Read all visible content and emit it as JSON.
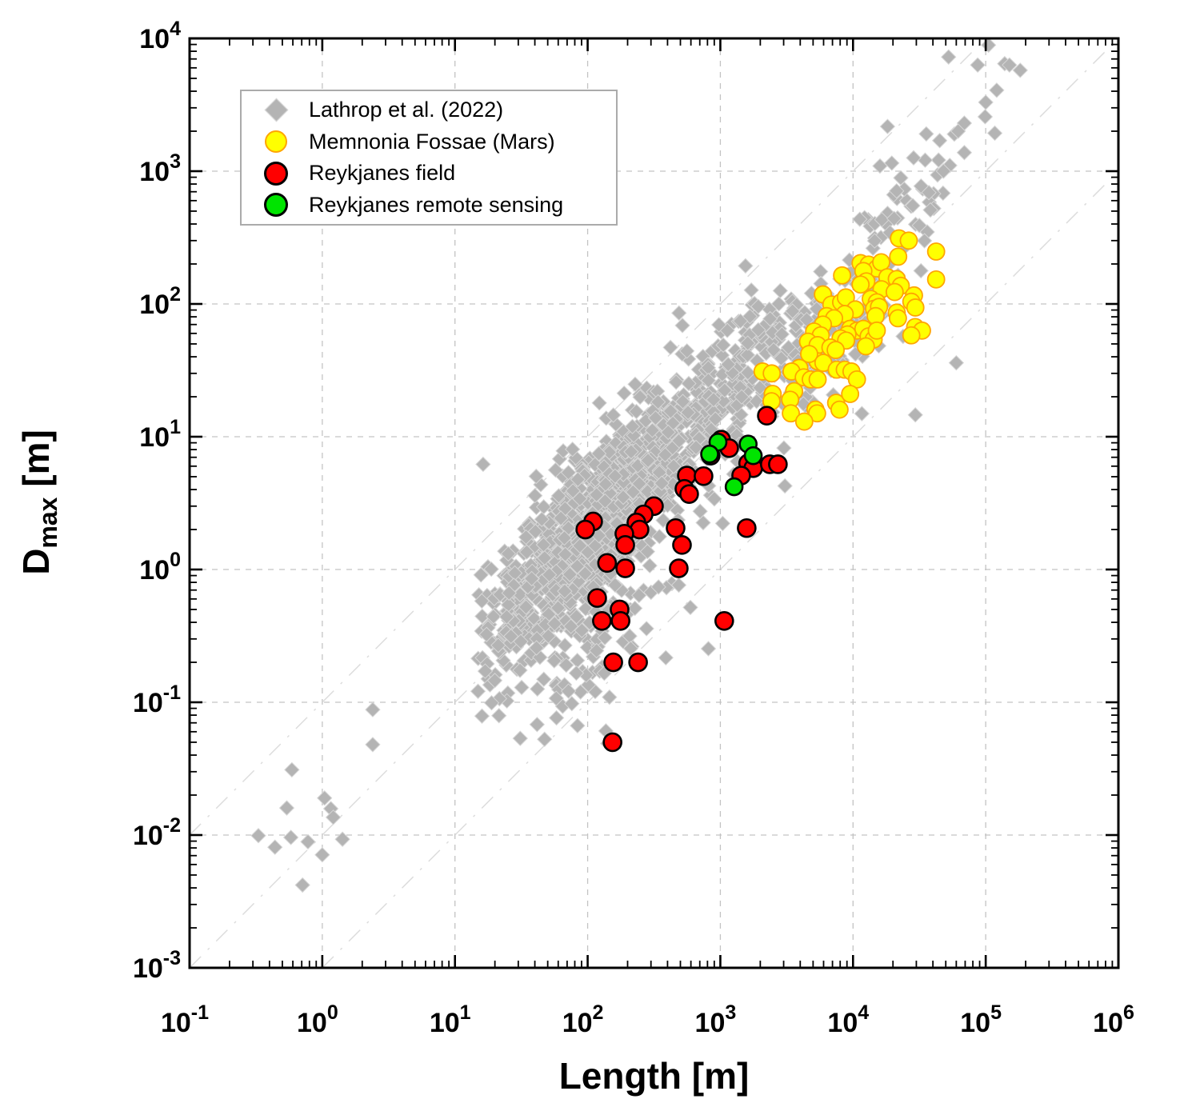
{
  "figure": {
    "background": "#ffffff",
    "frame_color": "#000000",
    "gridline_color": "#c3c3c3",
    "refline_color": "#dcdcdc"
  },
  "chart_data": {
    "type": "scatter",
    "x_scale": "log",
    "y_scale": "log",
    "x_range_log": [
      -1,
      6
    ],
    "y_range_log": [
      -3,
      4
    ],
    "grid": true,
    "legend_position": "top-left",
    "xlabel": "Length [m]",
    "ylabel_parts": {
      "main": "D",
      "sub": "max",
      "unit": " [m]"
    },
    "tick_base": "10",
    "reference_lines": {
      "style": "dash-dot",
      "slope": 1,
      "ratios": [
        0.1,
        0.01,
        0.001
      ]
    },
    "series": [
      {
        "name": "Lathrop et al. (2022)",
        "marker": "diamond",
        "color": "#b4b4b4",
        "edge": "#d6d6d6",
        "cloud_seed": 12345,
        "cloud_bounds": {
          "lx": [
            1.17,
            5.28
          ],
          "ly": [
            -1.38,
            3.6
          ],
          "diff": [
            -3.55,
            -0.72
          ]
        },
        "cloud_components": [
          {
            "n": 620,
            "cx": 1.83,
            "cy": 0.05,
            "sx": 0.36,
            "sy": 0.4,
            "rho": 0.72
          },
          {
            "n": 330,
            "cx": 2.35,
            "cy": 0.72,
            "sx": 0.33,
            "sy": 0.38,
            "rho": 0.65
          },
          {
            "n": 190,
            "cx": 3.05,
            "cy": 1.4,
            "sx": 0.33,
            "sy": 0.33,
            "rho": 0.55
          },
          {
            "n": 110,
            "cx": 3.85,
            "cy": 1.8,
            "sx": 0.3,
            "sy": 0.28,
            "rho": 0.5
          },
          {
            "n": 85,
            "cx": 1.95,
            "cy": -0.55,
            "sx": 0.33,
            "sy": 0.28,
            "rho": 0.4
          },
          {
            "n": 45,
            "cx": 4.4,
            "cy": 2.7,
            "sx": 0.28,
            "sy": 0.33,
            "rho": 0.7
          },
          {
            "n": 120,
            "cx": 2.2,
            "cy": 0.35,
            "sx": 0.65,
            "sy": 0.75,
            "rho": 0.72
          }
        ],
        "points_explicit": [
          [
            0.59,
            0.031
          ],
          [
            1.04,
            0.019
          ],
          [
            0.54,
            0.016
          ],
          [
            1.16,
            0.0158
          ],
          [
            1.21,
            0.0136
          ],
          [
            0.33,
            0.0099
          ],
          [
            0.44,
            0.0081
          ],
          [
            0.58,
            0.0096
          ],
          [
            0.78,
            0.0089
          ],
          [
            1.42,
            0.0093
          ],
          [
            1.0,
            0.0071
          ],
          [
            0.71,
            0.0042
          ],
          [
            2.4,
            0.088
          ],
          [
            2.4,
            0.048
          ],
          [
            16.3,
            6.2
          ],
          [
            15.7,
            0.91
          ],
          [
            60000,
            36
          ],
          [
            29500,
            14.6
          ],
          [
            105000,
            8900
          ],
          [
            52500,
            7240
          ],
          [
            87000,
            6300
          ],
          [
            139000,
            6450
          ],
          [
            151000,
            6300
          ],
          [
            182000,
            5750
          ],
          [
            121000,
            4070
          ],
          [
            100000,
            3300
          ],
          [
            99000,
            2570
          ],
          [
            69000,
            2300
          ],
          [
            58000,
            1900
          ],
          [
            62000,
            2000
          ],
          [
            45000,
            1700
          ],
          [
            69000,
            1380
          ],
          [
            19600,
            1150
          ],
          [
            28600,
            1260
          ],
          [
            48000,
            1000
          ],
          [
            22900,
            890
          ],
          [
            21300,
            710
          ],
          [
            37300,
            690
          ],
          [
            28200,
            550
          ],
          [
            38300,
            510
          ],
          [
            20400,
            440
          ],
          [
            31600,
            390
          ],
          [
            18200,
            2170
          ]
        ]
      },
      {
        "name": "Memnonia Fossae (Mars)",
        "marker": "circle",
        "color": "#ffff00",
        "edge": "#ffa500",
        "points": [
          [
            22200,
            312
          ],
          [
            26300,
            300
          ],
          [
            42300,
            248
          ],
          [
            21900,
            227
          ],
          [
            11400,
            203
          ],
          [
            13100,
            198
          ],
          [
            15100,
            185
          ],
          [
            16300,
            206
          ],
          [
            11970,
            177
          ],
          [
            8270,
            164
          ],
          [
            12600,
            148
          ],
          [
            11400,
            140
          ],
          [
            18150,
            159
          ],
          [
            21350,
            154
          ],
          [
            22900,
            137
          ],
          [
            42300,
            153
          ],
          [
            16400,
            129
          ],
          [
            20600,
            123
          ],
          [
            5930,
            118
          ],
          [
            6870,
            99
          ],
          [
            8130,
            103
          ],
          [
            8830,
            112
          ],
          [
            10400,
            91
          ],
          [
            8660,
            84
          ],
          [
            6330,
            81
          ],
          [
            7200,
            78
          ],
          [
            5930,
            70
          ],
          [
            13600,
            109
          ],
          [
            15100,
            103
          ],
          [
            14400,
            92
          ],
          [
            15700,
            95
          ],
          [
            21350,
            86
          ],
          [
            28800,
            116
          ],
          [
            27500,
            104
          ],
          [
            29500,
            94
          ],
          [
            14800,
            81
          ],
          [
            21800,
            78
          ],
          [
            9510,
            65
          ],
          [
            10700,
            63
          ],
          [
            11970,
            65
          ],
          [
            9080,
            59
          ],
          [
            5090,
            62
          ],
          [
            5710,
            58
          ],
          [
            4580,
            52
          ],
          [
            5410,
            49
          ],
          [
            8050,
            55
          ],
          [
            8870,
            53
          ],
          [
            13100,
            57
          ],
          [
            14300,
            54
          ],
          [
            12500,
            48
          ],
          [
            15100,
            63
          ],
          [
            29400,
            67
          ],
          [
            33100,
            63
          ],
          [
            27500,
            58
          ],
          [
            6750,
            47
          ],
          [
            7400,
            45
          ],
          [
            5410,
            37
          ],
          [
            4670,
            42
          ],
          [
            5980,
            36
          ],
          [
            3940,
            33
          ],
          [
            3440,
            31
          ],
          [
            2080,
            31
          ],
          [
            2440,
            30
          ],
          [
            4250,
            28
          ],
          [
            4800,
            27
          ],
          [
            5410,
            27
          ],
          [
            7530,
            32
          ],
          [
            8660,
            32
          ],
          [
            9730,
            31
          ],
          [
            10700,
            27
          ],
          [
            3600,
            22
          ],
          [
            2480,
            21
          ],
          [
            3360,
            19
          ],
          [
            5210,
            16
          ],
          [
            7460,
            18
          ],
          [
            9510,
            21
          ],
          [
            3400,
            15
          ],
          [
            5360,
            15
          ],
          [
            4290,
            13
          ],
          [
            7910,
            16
          ],
          [
            2430,
            18.5
          ]
        ]
      },
      {
        "name": "Reykjanes field",
        "marker": "circle",
        "color": "#ff0000",
        "edge": "#000000",
        "points": [
          [
            2240,
            14.4
          ],
          [
            1015,
            9.5
          ],
          [
            1165,
            8.2
          ],
          [
            845,
            7.2
          ],
          [
            1620,
            6.3
          ],
          [
            1770,
            5.8
          ],
          [
            2360,
            6.2
          ],
          [
            2715,
            6.2
          ],
          [
            1435,
            5.1
          ],
          [
            559,
            5.1
          ],
          [
            747,
            5.05
          ],
          [
            536,
            4.05
          ],
          [
            582,
            3.7
          ],
          [
            316,
            3.0
          ],
          [
            264,
            2.6
          ],
          [
            233,
            2.26
          ],
          [
            246,
            2.0
          ],
          [
            110,
            2.3
          ],
          [
            96,
            2.0
          ],
          [
            189,
            1.86
          ],
          [
            460,
            2.05
          ],
          [
            192,
            1.53
          ],
          [
            514,
            1.53
          ],
          [
            140,
            1.12
          ],
          [
            192,
            1.02
          ],
          [
            486,
            1.02
          ],
          [
            1580,
            2.05
          ],
          [
            118,
            0.61
          ],
          [
            174,
            0.5
          ],
          [
            128,
            0.41
          ],
          [
            177,
            0.41
          ],
          [
            1070,
            0.41
          ],
          [
            156,
            0.2
          ],
          [
            240,
            0.2
          ],
          [
            154,
            0.05
          ]
        ]
      },
      {
        "name": "Reykjanes remote sensing",
        "marker": "circle",
        "color": "#00e400",
        "edge": "#000000",
        "points": [
          [
            960,
            9.1
          ],
          [
            830,
            7.4
          ],
          [
            1620,
            8.8
          ],
          [
            1770,
            7.2
          ],
          [
            1270,
            4.2
          ]
        ]
      }
    ]
  }
}
